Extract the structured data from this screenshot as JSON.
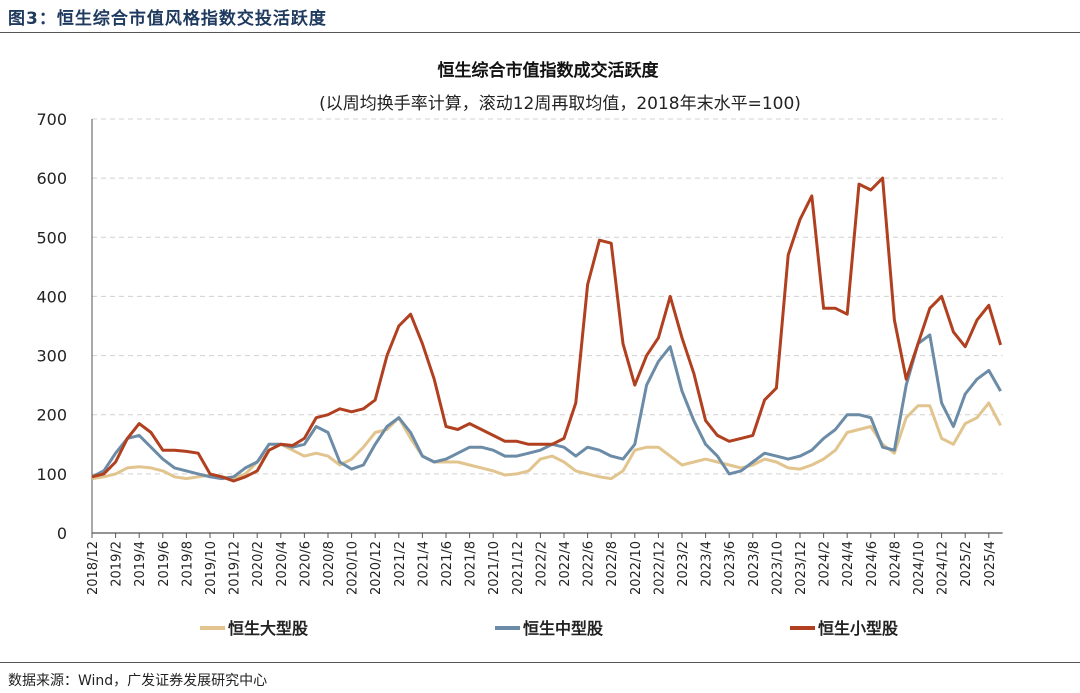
{
  "figure": {
    "label": "图3：恒生综合市值风格指数交投活跃度",
    "source": "数据来源：Wind，广发证券发展研究中心"
  },
  "chart_data": {
    "type": "line",
    "title": "恒生综合市值指数成交活跃度",
    "subtitle": "(以周均换手率计算，滚动12周再取均值，2018年末水平=100)",
    "xlabel": "",
    "ylabel": "",
    "ylim": [
      0,
      700
    ],
    "yticks": [
      0,
      100,
      200,
      300,
      400,
      500,
      600,
      700
    ],
    "grid": "horizontal dashed",
    "legend": "bottom",
    "xticks": [
      "2018/12",
      "2019/2",
      "2019/4",
      "2019/6",
      "2019/8",
      "2019/10",
      "2019/12",
      "2020/2",
      "2020/4",
      "2020/6",
      "2020/8",
      "2020/10",
      "2020/12",
      "2021/2",
      "2021/4",
      "2021/6",
      "2021/8",
      "2021/10",
      "2021/12",
      "2022/2",
      "2022/4",
      "2022/6",
      "2022/8",
      "2022/10",
      "2022/12",
      "2023/2",
      "2023/4",
      "2023/6",
      "2023/8",
      "2023/10",
      "2023/12",
      "2024/2",
      "2024/4",
      "2024/6",
      "2024/8",
      "2024/10",
      "2024/12",
      "2025/2",
      "2025/4"
    ],
    "x": [
      "2018/12",
      "2019/1",
      "2019/2",
      "2019/3",
      "2019/4",
      "2019/5",
      "2019/6",
      "2019/7",
      "2019/8",
      "2019/9",
      "2019/10",
      "2019/11",
      "2019/12",
      "2020/1",
      "2020/2",
      "2020/3",
      "2020/4",
      "2020/5",
      "2020/6",
      "2020/7",
      "2020/8",
      "2020/9",
      "2020/10",
      "2020/11",
      "2020/12",
      "2021/1",
      "2021/2",
      "2021/3",
      "2021/4",
      "2021/5",
      "2021/6",
      "2021/7",
      "2021/8",
      "2021/9",
      "2021/10",
      "2021/11",
      "2021/12",
      "2022/1",
      "2022/2",
      "2022/3",
      "2022/4",
      "2022/5",
      "2022/6",
      "2022/7",
      "2022/8",
      "2022/9",
      "2022/10",
      "2022/11",
      "2022/12",
      "2023/1",
      "2023/2",
      "2023/3",
      "2023/4",
      "2023/5",
      "2023/6",
      "2023/7",
      "2023/8",
      "2023/9",
      "2023/10",
      "2023/11",
      "2023/12",
      "2024/1",
      "2024/2",
      "2024/3",
      "2024/4",
      "2024/5",
      "2024/6",
      "2024/7",
      "2024/8",
      "2024/9",
      "2024/10",
      "2024/11",
      "2024/12",
      "2025/1",
      "2025/2",
      "2025/3",
      "2025/4",
      "2025/5"
    ],
    "series": [
      {
        "name": "恒生大型股",
        "color": "#e2c48e",
        "values": [
          92,
          95,
          100,
          110,
          112,
          110,
          105,
          95,
          92,
          95,
          98,
          95,
          92,
          100,
          120,
          140,
          150,
          140,
          130,
          135,
          130,
          115,
          125,
          145,
          170,
          175,
          195,
          160,
          130,
          120,
          120,
          120,
          115,
          110,
          105,
          98,
          100,
          105,
          125,
          130,
          120,
          105,
          100,
          95,
          92,
          105,
          140,
          145,
          145,
          130,
          115,
          120,
          125,
          120,
          115,
          110,
          115,
          125,
          120,
          110,
          108,
          115,
          125,
          140,
          170,
          175,
          180,
          150,
          135,
          195,
          215,
          215,
          160,
          150,
          185,
          195,
          220,
          182
        ]
      },
      {
        "name": "恒生中型股",
        "color": "#6b8ba6",
        "values": [
          95,
          105,
          135,
          160,
          165,
          145,
          125,
          110,
          105,
          100,
          95,
          92,
          95,
          110,
          120,
          150,
          150,
          145,
          150,
          180,
          170,
          120,
          108,
          115,
          150,
          180,
          195,
          170,
          130,
          120,
          125,
          135,
          145,
          145,
          140,
          130,
          130,
          135,
          140,
          150,
          145,
          130,
          145,
          140,
          130,
          125,
          150,
          250,
          290,
          315,
          240,
          190,
          150,
          130,
          100,
          105,
          120,
          135,
          130,
          125,
          130,
          140,
          160,
          175,
          200,
          200,
          195,
          145,
          140,
          250,
          320,
          335,
          220,
          180,
          235,
          260,
          275,
          240
        ]
      },
      {
        "name": "恒生小型股",
        "color": "#b0401f",
        "values": [
          95,
          100,
          120,
          160,
          185,
          170,
          140,
          140,
          138,
          135,
          100,
          95,
          88,
          95,
          105,
          140,
          150,
          148,
          160,
          195,
          200,
          210,
          205,
          210,
          225,
          300,
          350,
          370,
          320,
          260,
          180,
          175,
          185,
          175,
          165,
          155,
          155,
          150,
          150,
          150,
          160,
          220,
          420,
          495,
          490,
          320,
          250,
          300,
          330,
          400,
          330,
          270,
          190,
          165,
          155,
          160,
          165,
          225,
          245,
          470,
          530,
          570,
          380,
          380,
          370,
          590,
          580,
          600,
          360,
          260,
          320,
          380,
          400,
          340,
          315,
          360,
          385,
          318
        ]
      }
    ]
  }
}
